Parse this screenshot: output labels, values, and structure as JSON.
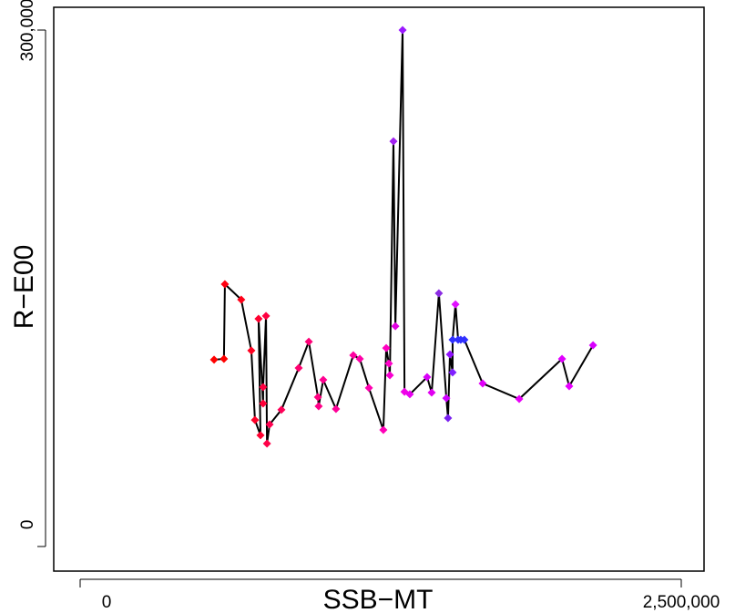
{
  "chart_data": {
    "type": "scatter",
    "connect": true,
    "line_color": "#000000",
    "x_label": "SSB−MT",
    "y_label": "R−E00",
    "xlim": [
      0,
      2500000
    ],
    "ylim": [
      0,
      300000
    ],
    "xticks": [
      {
        "value": 0,
        "label": "0"
      },
      {
        "value": 2500000,
        "label": "2,500,000"
      }
    ],
    "yticks": [
      {
        "value": 0,
        "label": "0"
      },
      {
        "value": 300000,
        "label": "300,000"
      }
    ],
    "x": [
      557000,
      598000,
      602000,
      670000,
      712000,
      727000,
      750000,
      742000,
      761000,
      761000,
      773000,
      777000,
      788000,
      837000,
      909000,
      951000,
      989000,
      992000,
      1011000,
      1064000,
      1136000,
      1163000,
      1201000,
      1261000,
      1273000,
      1284000,
      1288000,
      1303000,
      1311000,
      1341000,
      1349000,
      1371000,
      1443000,
      1462000,
      1492000,
      1523000,
      1530000,
      1538000,
      1549000,
      1549000,
      1561000,
      1572000,
      1583000,
      1598000,
      1674000,
      1826000,
      2004000,
      2034000,
      2133000
    ],
    "y": [
      108500,
      109000,
      152400,
      143400,
      113800,
      73500,
      64600,
      132300,
      83100,
      92600,
      133900,
      59800,
      70900,
      79400,
      103700,
      119000,
      86800,
      81500,
      96800,
      79900,
      111100,
      109000,
      92100,
      67700,
      115300,
      106300,
      99500,
      235400,
      128000,
      300000,
      89900,
      88400,
      98400,
      89400,
      147100,
      86200,
      74600,
      111600,
      101100,
      120100,
      140700,
      120100,
      120100,
      120100,
      94700,
      85700,
      109000,
      93100,
      116900
    ],
    "colors": [
      "#ff0000",
      "#ff0000",
      "#ff0010",
      "#ff0018",
      "#ff0020",
      "#ff0028",
      "#ff0030",
      "#ff0030",
      "#ff0038",
      "#ff0040",
      "#ff0040",
      "#ff0048",
      "#ff0050",
      "#ff0058",
      "#ff0070",
      "#ff0078",
      "#ff0080",
      "#ff0088",
      "#ff0090",
      "#ff0098",
      "#ff00a0",
      "#ff00a8",
      "#ff00b0",
      "#ff00b8",
      "#ff00c0",
      "#ff00c8",
      "#f800d0",
      "#a020f0",
      "#e000e0",
      "#9a18ff",
      "#f000e8",
      "#e800f0",
      "#d800f8",
      "#e000f0",
      "#8a2be2",
      "#d000ff",
      "#7a20f0",
      "#9010ff",
      "#8020ff",
      "#3030ff",
      "#e010ff",
      "#3030ff",
      "#3030ff",
      "#3030ff",
      "#e000f8",
      "#e800f8",
      "#e000ff",
      "#e800ff",
      "#d800ff"
    ]
  }
}
